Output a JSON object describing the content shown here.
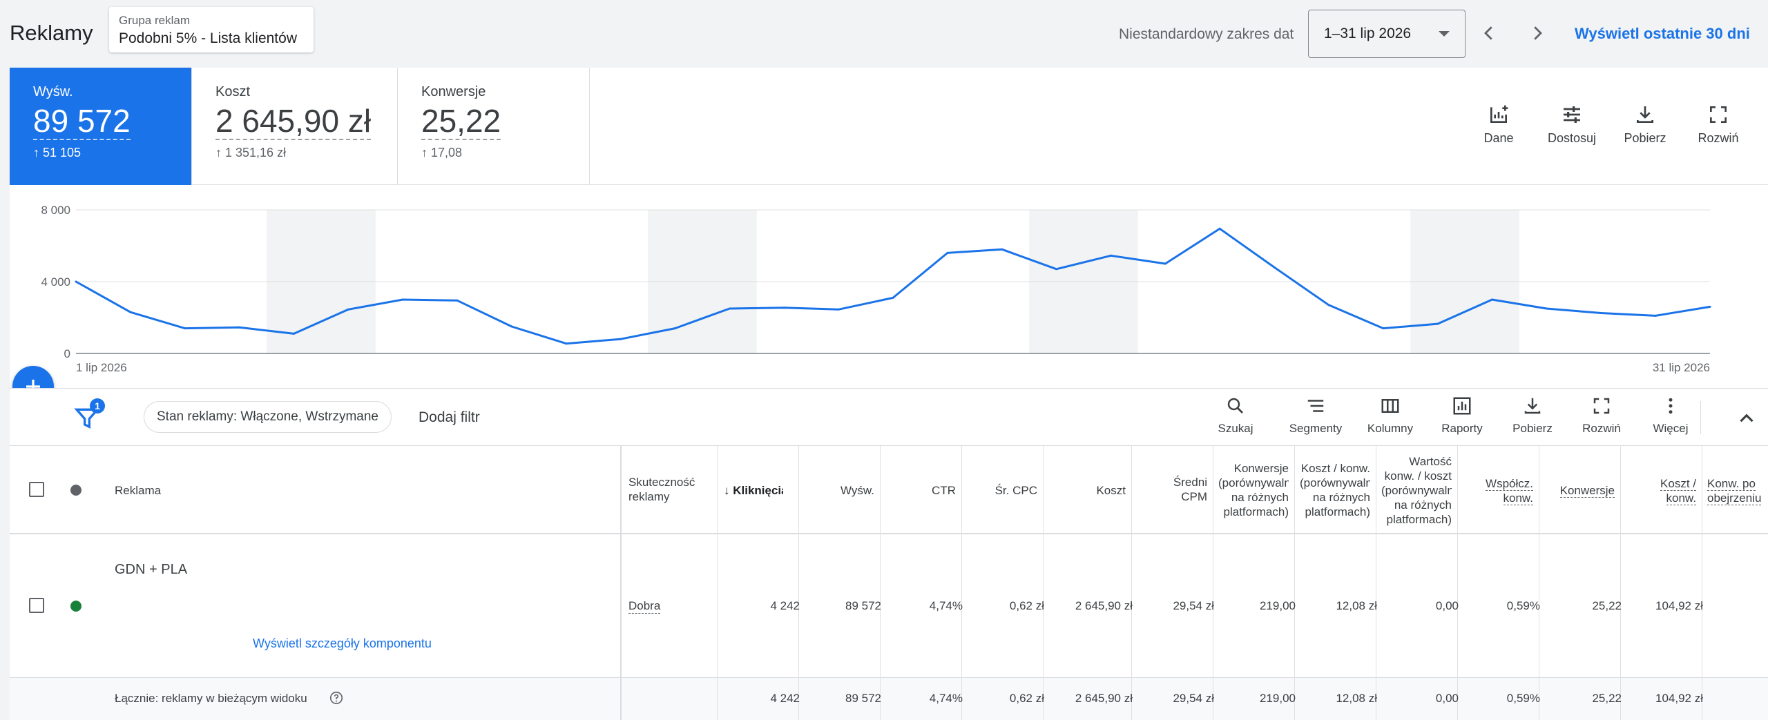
{
  "header": {
    "title": "Reklamy",
    "ad_group_label": "Grupa reklam",
    "ad_group_value": "Podobni 5% - Lista klientów",
    "range_label": "Niestandardowy zakres dat",
    "date_range": "1–31 lip 2026",
    "last30_link": "Wyświetl ostatnie 30 dni"
  },
  "summary": {
    "metrics": [
      {
        "label": "Wyśw.",
        "value": "89 572",
        "delta": "↑ 51 105"
      },
      {
        "label": "Koszt",
        "value": "2 645,90 zł",
        "delta": "↑ 1 351,16 zł"
      },
      {
        "label": "Konwersje",
        "value": "25,22",
        "delta": "↑ 17,08"
      }
    ],
    "tools": [
      "Dane",
      "Dostosuj",
      "Pobierz",
      "Rozwiń"
    ]
  },
  "chart_data": {
    "type": "line",
    "series": [
      {
        "values": [
          4000,
          2300,
          1400,
          1450,
          1100,
          2450,
          3000,
          2950,
          1500,
          550,
          800,
          1400,
          2500,
          2550,
          2450,
          3100,
          5600,
          5800,
          4700,
          5450,
          5000,
          6950,
          4800,
          2700,
          1400,
          1650,
          3000,
          2500,
          2250,
          2100,
          2600
        ]
      }
    ],
    "x_start_label": "1 lip 2026",
    "x_end_label": "31 lip 2026",
    "y_ticks": [
      "0",
      "4 000",
      "8 000"
    ],
    "ylim": [
      0,
      8000
    ],
    "weekend_shading": [
      [
        4,
        5
      ],
      [
        11,
        12
      ],
      [
        18,
        19
      ],
      [
        25,
        26
      ]
    ],
    "grid": true,
    "line_color": "#1a73e8"
  },
  "filter": {
    "badge": "1",
    "chip": "Stan reklamy: Włączone, Wstrzymane",
    "add_filter": "Dodaj filtr",
    "tools": [
      "Szukaj",
      "Segmenty",
      "Kolumny",
      "Raporty",
      "Pobierz",
      "Rozwiń",
      "Więcej"
    ]
  },
  "table": {
    "headers": {
      "ad": "Reklama",
      "effectiveness": [
        "Skuteczność",
        "reklamy"
      ],
      "clicks": "Kliknięcia",
      "impressions": "Wyśw.",
      "ctr": "CTR",
      "avg_cpc": "Śr. CPC",
      "cost": "Koszt",
      "avg_cpm": [
        "Średni",
        "CPM"
      ],
      "conv_cross": [
        "Konwersje",
        "(porównywalne",
        "na różnych",
        "platformach)"
      ],
      "cost_per_conv_cross": [
        "Koszt / konw.",
        "(porównywalne",
        "na różnych",
        "platformach)"
      ],
      "value_cross": [
        "Wartość",
        "konw. / koszt",
        "(porównywalne",
        "na różnych",
        "platformach)"
      ],
      "conv_rate": [
        "Współcz.",
        "konw."
      ],
      "conversions": "Konwersje",
      "cost_conv": [
        "Koszt /",
        "konw."
      ],
      "view_conv": [
        "Konw. po",
        "obejrzeniu"
      ]
    },
    "row": {
      "name": "GDN + PLA",
      "detail_link": "Wyświetl szczegóły komponentu",
      "effectiveness": "Dobra",
      "clicks": "4 242",
      "impressions": "89 572",
      "ctr": "4,74%",
      "avg_cpc": "0,62 zł",
      "cost": "2 645,90 zł",
      "avg_cpm": "29,54 zł",
      "conv_cross": "219,00",
      "cost_per_conv_cross": "12,08 zł",
      "value_cross": "0,00",
      "conv_rate": "0,59%",
      "conversions": "25,22",
      "cost_conv": "104,92 zł",
      "status_color": "#188038"
    },
    "total": {
      "label": "Łącznie: reklamy w bieżącym widoku",
      "clicks": "4 242",
      "impressions": "89 572",
      "ctr": "4,74%",
      "avg_cpc": "0,62 zł",
      "cost": "2 645,90 zł",
      "avg_cpm": "29,54 zł",
      "conv_cross": "219,00",
      "cost_per_conv_cross": "12,08 zł",
      "value_cross": "0,00",
      "conv_rate": "0,59%",
      "conversions": "25,22",
      "cost_conv": "104,92 zł"
    }
  }
}
